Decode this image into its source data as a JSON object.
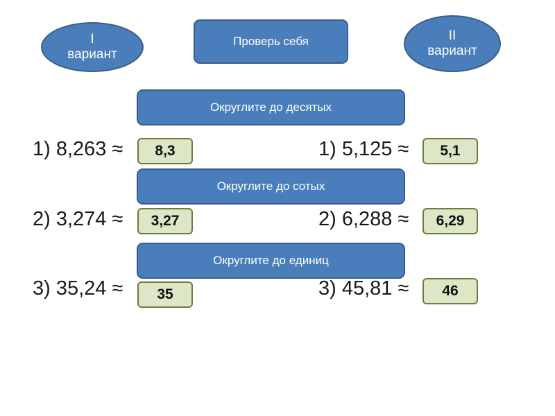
{
  "header": {
    "variant1": {
      "line1": "I",
      "line2": "вариант"
    },
    "check_button": "Проверь себя",
    "variant2": {
      "line1": "II",
      "line2": "вариант"
    }
  },
  "sections": [
    {
      "title": "Округлите до десятых",
      "left": {
        "expr": "1) 8,263 ≈",
        "answer": "8,3"
      },
      "right": {
        "expr": "1) 5,125 ≈",
        "answer": "5,1"
      }
    },
    {
      "title": "Округлите до сотых",
      "left": {
        "expr": "2) 3,274 ≈",
        "answer": "3,27"
      },
      "right": {
        "expr": "2) 6,288 ≈",
        "answer": "6,29"
      }
    },
    {
      "title": "Округлите до единиц",
      "left": {
        "expr": "3) 35,24 ≈",
        "answer": "35"
      },
      "right": {
        "expr": "3) 45,81 ≈",
        "answer": "46"
      }
    }
  ],
  "colors": {
    "button_fill": "#4a7ebb",
    "button_border": "#385d8a",
    "answer_fill": "#dde6c6",
    "answer_border": "#6a7d3e"
  }
}
